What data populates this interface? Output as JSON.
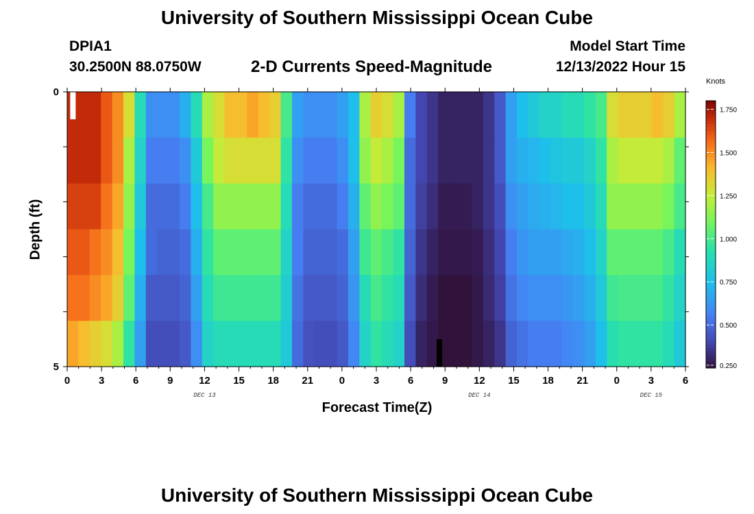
{
  "header": {
    "title": "University of Southern Mississippi Ocean Cube",
    "station": "DPIA1",
    "coords": "30.2500N  88.0750W",
    "subtitle": "2-D Currents Speed-Magnitude",
    "model_start_label": "Model Start Time",
    "model_start_value": "12/13/2022 Hour 15"
  },
  "footer": {
    "title": "University of Southern Mississippi Ocean Cube"
  },
  "chart_data": {
    "type": "heatmap",
    "title": "2-D Currents Speed-Magnitude",
    "xlabel": "Forecast Time(Z)",
    "ylabel": "Depth (ft)",
    "x_hours": [
      0,
      1,
      2,
      3,
      4,
      5,
      6,
      7,
      8,
      9,
      10,
      11,
      12,
      13,
      14,
      15,
      16,
      17,
      18,
      19,
      20,
      21,
      22,
      23,
      24,
      25,
      26,
      27,
      28,
      29,
      30,
      31,
      32,
      33,
      34,
      35,
      36,
      37,
      38,
      39,
      40,
      41,
      42,
      43,
      44,
      45,
      46,
      47,
      48,
      49,
      50,
      51,
      52,
      53,
      54
    ],
    "x_tick_labels": [
      "0",
      "3",
      "6",
      "9",
      "12",
      "15",
      "18",
      "21",
      "0",
      "3",
      "6",
      "9",
      "12",
      "15",
      "18",
      "21",
      "0",
      "3",
      "6"
    ],
    "x_tick_hours": [
      0,
      3,
      6,
      9,
      12,
      15,
      18,
      21,
      24,
      27,
      30,
      33,
      36,
      39,
      42,
      45,
      48,
      51,
      54
    ],
    "date_labels": [
      {
        "text": "DEC 13",
        "hour": 12
      },
      {
        "text": "DEC 14",
        "hour": 36
      },
      {
        "text": "DEC 15",
        "hour": 51
      }
    ],
    "y_tick_labels": [
      "0",
      "5"
    ],
    "ylim": [
      0,
      5
    ],
    "depth_levels": 5,
    "colorbar": {
      "title": "Knots",
      "min": 0.25,
      "max": 1.8,
      "tick_values": [
        0.25,
        0.5,
        0.75,
        1.0,
        1.25,
        1.5,
        1.75
      ],
      "tick_labels": [
        "0.250",
        "0.500",
        "0.750",
        "1.000",
        "1.250",
        "1.500",
        "1.750"
      ]
    },
    "speed_rows": [
      [
        1.7,
        1.7,
        1.7,
        1.6,
        1.5,
        1.3,
        0.9,
        0.6,
        0.6,
        0.6,
        0.7,
        0.9,
        1.2,
        1.3,
        1.4,
        1.4,
        1.45,
        1.4,
        1.35,
        1.0,
        0.65,
        0.6,
        0.6,
        0.6,
        0.65,
        0.75,
        1.2,
        1.35,
        1.3,
        1.2,
        0.55,
        0.4,
        0.35,
        0.3,
        0.3,
        0.3,
        0.3,
        0.35,
        0.45,
        0.65,
        0.75,
        0.8,
        0.85,
        0.85,
        0.9,
        0.9,
        0.95,
        1.0,
        1.3,
        1.35,
        1.35,
        1.35,
        1.4,
        1.35,
        1.2
      ],
      [
        1.7,
        1.7,
        1.7,
        1.6,
        1.5,
        1.2,
        0.85,
        0.55,
        0.55,
        0.55,
        0.6,
        0.8,
        1.1,
        1.25,
        1.3,
        1.3,
        1.3,
        1.3,
        1.3,
        0.95,
        0.6,
        0.55,
        0.55,
        0.55,
        0.6,
        0.75,
        1.15,
        1.25,
        1.2,
        1.1,
        0.5,
        0.4,
        0.35,
        0.3,
        0.3,
        0.3,
        0.3,
        0.35,
        0.45,
        0.65,
        0.7,
        0.72,
        0.75,
        0.78,
        0.8,
        0.8,
        0.85,
        0.95,
        1.2,
        1.25,
        1.25,
        1.25,
        1.25,
        1.2,
        1.05
      ],
      [
        1.65,
        1.65,
        1.65,
        1.55,
        1.45,
        1.15,
        0.8,
        0.5,
        0.5,
        0.5,
        0.55,
        0.75,
        1.0,
        1.15,
        1.15,
        1.15,
        1.15,
        1.15,
        1.15,
        0.9,
        0.55,
        0.5,
        0.5,
        0.5,
        0.55,
        0.7,
        1.05,
        1.15,
        1.1,
        1.05,
        0.5,
        0.38,
        0.33,
        0.28,
        0.28,
        0.28,
        0.3,
        0.35,
        0.42,
        0.6,
        0.65,
        0.68,
        0.7,
        0.72,
        0.75,
        0.75,
        0.8,
        0.9,
        1.15,
        1.15,
        1.15,
        1.15,
        1.15,
        1.1,
        1.0
      ],
      [
        1.6,
        1.6,
        1.55,
        1.5,
        1.4,
        1.1,
        0.75,
        0.5,
        0.48,
        0.48,
        0.5,
        0.7,
        0.95,
        1.05,
        1.05,
        1.05,
        1.05,
        1.05,
        1.05,
        0.85,
        0.55,
        0.48,
        0.48,
        0.48,
        0.5,
        0.65,
        0.98,
        1.05,
        1.0,
        0.95,
        0.48,
        0.35,
        0.3,
        0.27,
        0.27,
        0.27,
        0.28,
        0.33,
        0.4,
        0.55,
        0.62,
        0.65,
        0.65,
        0.65,
        0.68,
        0.7,
        0.75,
        0.85,
        1.05,
        1.05,
        1.05,
        1.05,
        1.05,
        1.0,
        0.9
      ],
      [
        1.55,
        1.55,
        1.5,
        1.45,
        1.35,
        1.05,
        0.7,
        0.45,
        0.45,
        0.45,
        0.48,
        0.65,
        0.9,
        0.98,
        0.98,
        0.98,
        0.98,
        0.98,
        0.98,
        0.82,
        0.52,
        0.45,
        0.45,
        0.45,
        0.48,
        0.62,
        0.9,
        1.0,
        0.95,
        0.9,
        0.45,
        0.33,
        0.28,
        0.25,
        0.25,
        0.25,
        0.27,
        0.32,
        0.38,
        0.52,
        0.58,
        0.6,
        0.6,
        0.6,
        0.62,
        0.65,
        0.7,
        0.8,
        0.98,
        1.0,
        1.0,
        1.0,
        1.0,
        0.95,
        0.85
      ],
      [
        1.45,
        1.4,
        1.35,
        1.3,
        1.2,
        0.95,
        0.65,
        0.42,
        0.42,
        0.42,
        0.45,
        0.6,
        0.85,
        0.9,
        0.9,
        0.9,
        0.9,
        0.9,
        0.9,
        0.8,
        0.5,
        0.43,
        0.42,
        0.42,
        0.45,
        0.58,
        0.85,
        0.95,
        0.9,
        0.85,
        0.42,
        0.3,
        0.27,
        0.25,
        0.25,
        0.25,
        0.27,
        0.3,
        0.35,
        0.48,
        0.52,
        0.55,
        0.55,
        0.55,
        0.58,
        0.6,
        0.65,
        0.75,
        0.92,
        0.95,
        0.95,
        0.95,
        0.95,
        0.9,
        0.8
      ]
    ],
    "markers": [
      {
        "name": "white-marker",
        "hour": 0.5,
        "color": "#ffffff",
        "depth_from": 0,
        "depth_to": 0.5
      },
      {
        "name": "black-marker",
        "hour": 32.5,
        "color": "#000000",
        "depth_from": 4.5,
        "depth_to": 5
      }
    ]
  }
}
